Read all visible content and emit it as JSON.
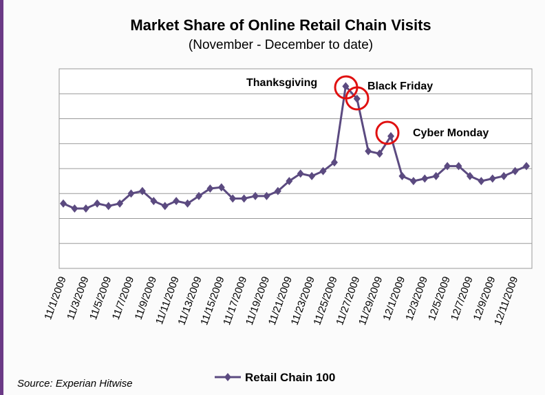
{
  "chart_data": {
    "type": "line",
    "title": "Market Share of Online Retail Chain Visits",
    "subtitle": "(November - December to date)",
    "categories": [
      "11/1/2009",
      null,
      "11/3/2009",
      null,
      "11/5/2009",
      null,
      "11/7/2009",
      null,
      "11/9/2009",
      null,
      "11/11/2009",
      null,
      "11/13/2009",
      null,
      "11/15/2009",
      null,
      "11/17/2009",
      null,
      "11/19/2009",
      null,
      "11/21/2009",
      null,
      "11/23/2009",
      null,
      "11/25/2009",
      null,
      "11/27/2009",
      null,
      "11/29/2009",
      null,
      "12/1/2009",
      null,
      "12/3/2009",
      null,
      "12/5/2009",
      null,
      "12/7/2009",
      null,
      "12/9/2009",
      null,
      "12/11/2009",
      null
    ],
    "series": [
      {
        "name": "Retail Chain 100",
        "color": "#5b4a80",
        "values": [
          2.6,
          2.4,
          2.4,
          2.6,
          2.5,
          2.6,
          3.0,
          3.1,
          2.7,
          2.5,
          2.7,
          2.6,
          2.9,
          3.2,
          3.25,
          2.8,
          2.8,
          2.9,
          2.9,
          3.1,
          3.5,
          3.8,
          3.7,
          3.9,
          4.25,
          7.3,
          6.8,
          4.7,
          4.6,
          5.3,
          3.7,
          3.5,
          3.6,
          3.7,
          4.1,
          4.1,
          3.7,
          3.5,
          3.6,
          3.7,
          3.9,
          4.1
        ]
      }
    ],
    "ylim": [
      0,
      8
    ],
    "grid": true,
    "annotations": [
      "Thanksgiving",
      "Black Friday",
      "Cyber Monday"
    ],
    "source": "Source: Experian Hitwise"
  }
}
